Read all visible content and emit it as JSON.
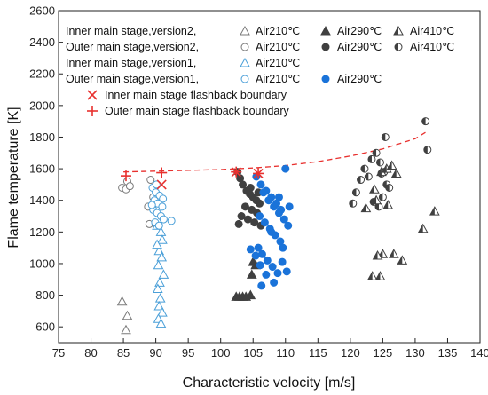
{
  "chart_data": {
    "type": "scatter",
    "title": "",
    "xlabel": "Characteristic velocity [m/s]",
    "ylabel": "Flame temperature [K]",
    "xlim": [
      75,
      140
    ],
    "ylim": [
      500,
      2600
    ],
    "xticks": [
      "75",
      "80",
      "85",
      "90",
      "95",
      "100",
      "105",
      "110",
      "115",
      "120",
      "125",
      "130",
      "135",
      "140"
    ],
    "yticks": [
      "600",
      "800",
      "1000",
      "1200",
      "1400",
      "1600",
      "1800",
      "2000",
      "2200",
      "2400",
      "2600"
    ],
    "legend": {
      "placement": "top-left",
      "row_labels": [
        "Inner main stage,version2,",
        "Outer main stage,version2,",
        "Inner main stage,version1,",
        "Outer main stage,version1,"
      ],
      "entries": [
        "Air210℃",
        "Air290℃",
        "Air410℃",
        "Air210℃",
        "Air290℃",
        "Air410℃",
        "Air210℃",
        "Air210℃",
        "Air290℃",
        "Inner main stage flashback boundary",
        "Outer main stage flashback boundary"
      ]
    },
    "colors": {
      "dark": "#404040",
      "blue": "#1a73d9",
      "lightblue": "#4a9fd8",
      "gray": "#7a7a7a",
      "red": "#e8312f"
    },
    "series": [
      {
        "marker": "triangle-open",
        "color": "#7a7a7a",
        "x": [
          84.8,
          85.6,
          85.4
        ],
        "y": [
          760,
          670,
          580
        ]
      },
      {
        "marker": "circle-open",
        "color": "#7a7a7a",
        "x": [
          84.8,
          85.6,
          85.4,
          86.0,
          89.2,
          89.6,
          88.8,
          89.0
        ],
        "y": [
          1480,
          1520,
          1470,
          1490,
          1530,
          1420,
          1360,
          1250
        ]
      },
      {
        "marker": "triangle-open",
        "color": "#4a9fd8",
        "x": [
          90.2,
          90.8,
          91.0,
          90.5,
          90.9,
          90.4,
          91.2,
          90.6,
          90.3,
          90.7,
          90.5,
          91.0,
          90.4,
          90.8,
          90.2
        ],
        "y": [
          1240,
          1200,
          1150,
          1080,
          1040,
          990,
          930,
          880,
          840,
          780,
          730,
          690,
          650,
          620,
          1120
        ]
      },
      {
        "marker": "circle-open",
        "color": "#4a9fd8",
        "x": [
          89.5,
          90.0,
          90.6,
          89.8,
          90.3,
          91.0,
          89.6,
          90.2,
          90.8,
          91.2,
          89.9,
          90.5,
          92.4,
          90.1,
          89.4,
          91.1
        ],
        "y": [
          1480,
          1450,
          1430,
          1400,
          1380,
          1360,
          1340,
          1320,
          1300,
          1280,
          1260,
          1240,
          1270,
          1500,
          1370,
          1410
        ]
      },
      {
        "marker": "triangle-filled",
        "color": "#404040",
        "x": [
          102.4,
          102.9,
          103.4,
          103.9,
          104.6,
          105.0,
          105.4,
          104.8
        ],
        "y": [
          790,
          790,
          790,
          790,
          800,
          1010,
          990,
          930
        ]
      },
      {
        "marker": "circle-filled",
        "color": "#404040",
        "x": [
          102.6,
          103.0,
          103.4,
          104.0,
          104.5,
          105.0,
          105.5,
          106.0,
          103.8,
          104.8,
          105.6,
          103.2,
          104.2,
          105.2,
          106.2,
          102.8,
          104.6,
          105.8
        ],
        "y": [
          1580,
          1540,
          1500,
          1460,
          1440,
          1420,
          1400,
          1380,
          1360,
          1340,
          1320,
          1300,
          1280,
          1260,
          1240,
          1250,
          1480,
          1450
        ]
      },
      {
        "marker": "half-circle",
        "color": "#404040",
        "x": [
          120.4,
          120.9,
          121.6,
          122.2,
          123.3,
          124.0,
          124.6,
          125.2,
          125.6,
          125.0,
          124.4,
          123.6,
          126.0,
          124.8,
          131.6,
          131.9,
          125.4,
          122.8
        ],
        "y": [
          1380,
          1450,
          1530,
          1600,
          1660,
          1700,
          1640,
          1580,
          1500,
          1420,
          1360,
          1390,
          1480,
          1570,
          1900,
          1720,
          1800,
          1550
        ]
      },
      {
        "marker": "half-triangle",
        "color": "#404040",
        "x": [
          122.4,
          123.7,
          124.8,
          125.6,
          126.4,
          127.1,
          125.0,
          124.2,
          126.7,
          123.4,
          124.6,
          125.8,
          131.2,
          133.0,
          128.0,
          124.0
        ],
        "y": [
          1350,
          1470,
          1580,
          1600,
          1620,
          1570,
          1060,
          1050,
          1060,
          920,
          920,
          1370,
          1220,
          1330,
          1020,
          1400
        ]
      },
      {
        "marker": "circle-filled",
        "color": "#1a73d9",
        "x": [
          105.5,
          106.2,
          107.0,
          107.8,
          108.6,
          109.3,
          110.0,
          106.6,
          107.4,
          108.2,
          109.0,
          109.8,
          110.6,
          106.0,
          106.8,
          107.6,
          108.4,
          109.2,
          110.4,
          105.8,
          106.4,
          107.2,
          108.0,
          108.8,
          109.6,
          105.4,
          106.1,
          107.0,
          108.2,
          109.5,
          110.2,
          106.3,
          107.8,
          109.0,
          104.6
        ],
        "y": [
          1550,
          1500,
          1460,
          1420,
          1380,
          1340,
          1600,
          1450,
          1400,
          1360,
          1320,
          1280,
          1360,
          1300,
          1260,
          1220,
          1180,
          1140,
          1240,
          1100,
          1060,
          1020,
          980,
          940,
          1100,
          1050,
          990,
          930,
          880,
          1010,
          950,
          860,
          1200,
          1420,
          1090
        ]
      },
      {
        "marker": "x-cross",
        "color": "#e8312f",
        "x": [
          90.9,
          102.4,
          105.8
        ],
        "y": [
          1500,
          1580,
          1570
        ]
      },
      {
        "marker": "plus-cross",
        "color": "#e8312f",
        "x": [
          85.4,
          90.9,
          102.4,
          105.8
        ],
        "y": [
          1555,
          1575,
          1580,
          1570
        ]
      }
    ],
    "boundary_curve": {
      "color": "#e8312f",
      "x": [
        85,
        90,
        95,
        100,
        105,
        110,
        115,
        120,
        125,
        130,
        132
      ],
      "y": [
        1580,
        1585,
        1590,
        1595,
        1605,
        1620,
        1645,
        1680,
        1725,
        1790,
        1840
      ]
    }
  }
}
